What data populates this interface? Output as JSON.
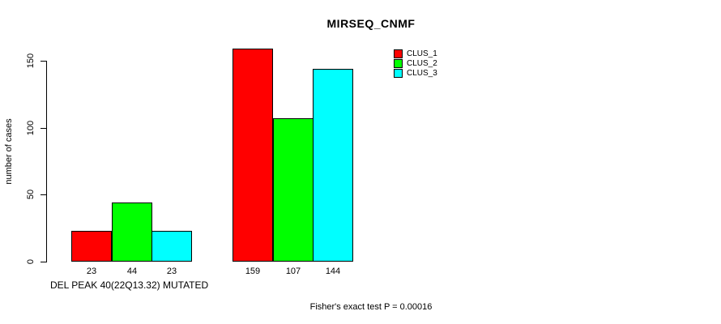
{
  "chart_data": {
    "type": "bar",
    "title": "MIRSEQ_CNMF",
    "ylabel": "number of cases",
    "xlabel": "DEL PEAK 40(22Q13.32) MUTATED",
    "annotation": "Fisher's exact test P = 0.00016",
    "yticks": [
      0,
      50,
      100,
      150
    ],
    "ylim": [
      0,
      160
    ],
    "grid": false,
    "legend_position": "top-right",
    "bar_value_labels_shown": true,
    "group_count": 2,
    "series": [
      {
        "name": "CLUS_1",
        "color": "#ff0000",
        "values": [
          23,
          159
        ]
      },
      {
        "name": "CLUS_2",
        "color": "#00ff00",
        "values": [
          44,
          107
        ]
      },
      {
        "name": "CLUS_3",
        "color": "#00ffff",
        "values": [
          23,
          144
        ]
      }
    ]
  }
}
